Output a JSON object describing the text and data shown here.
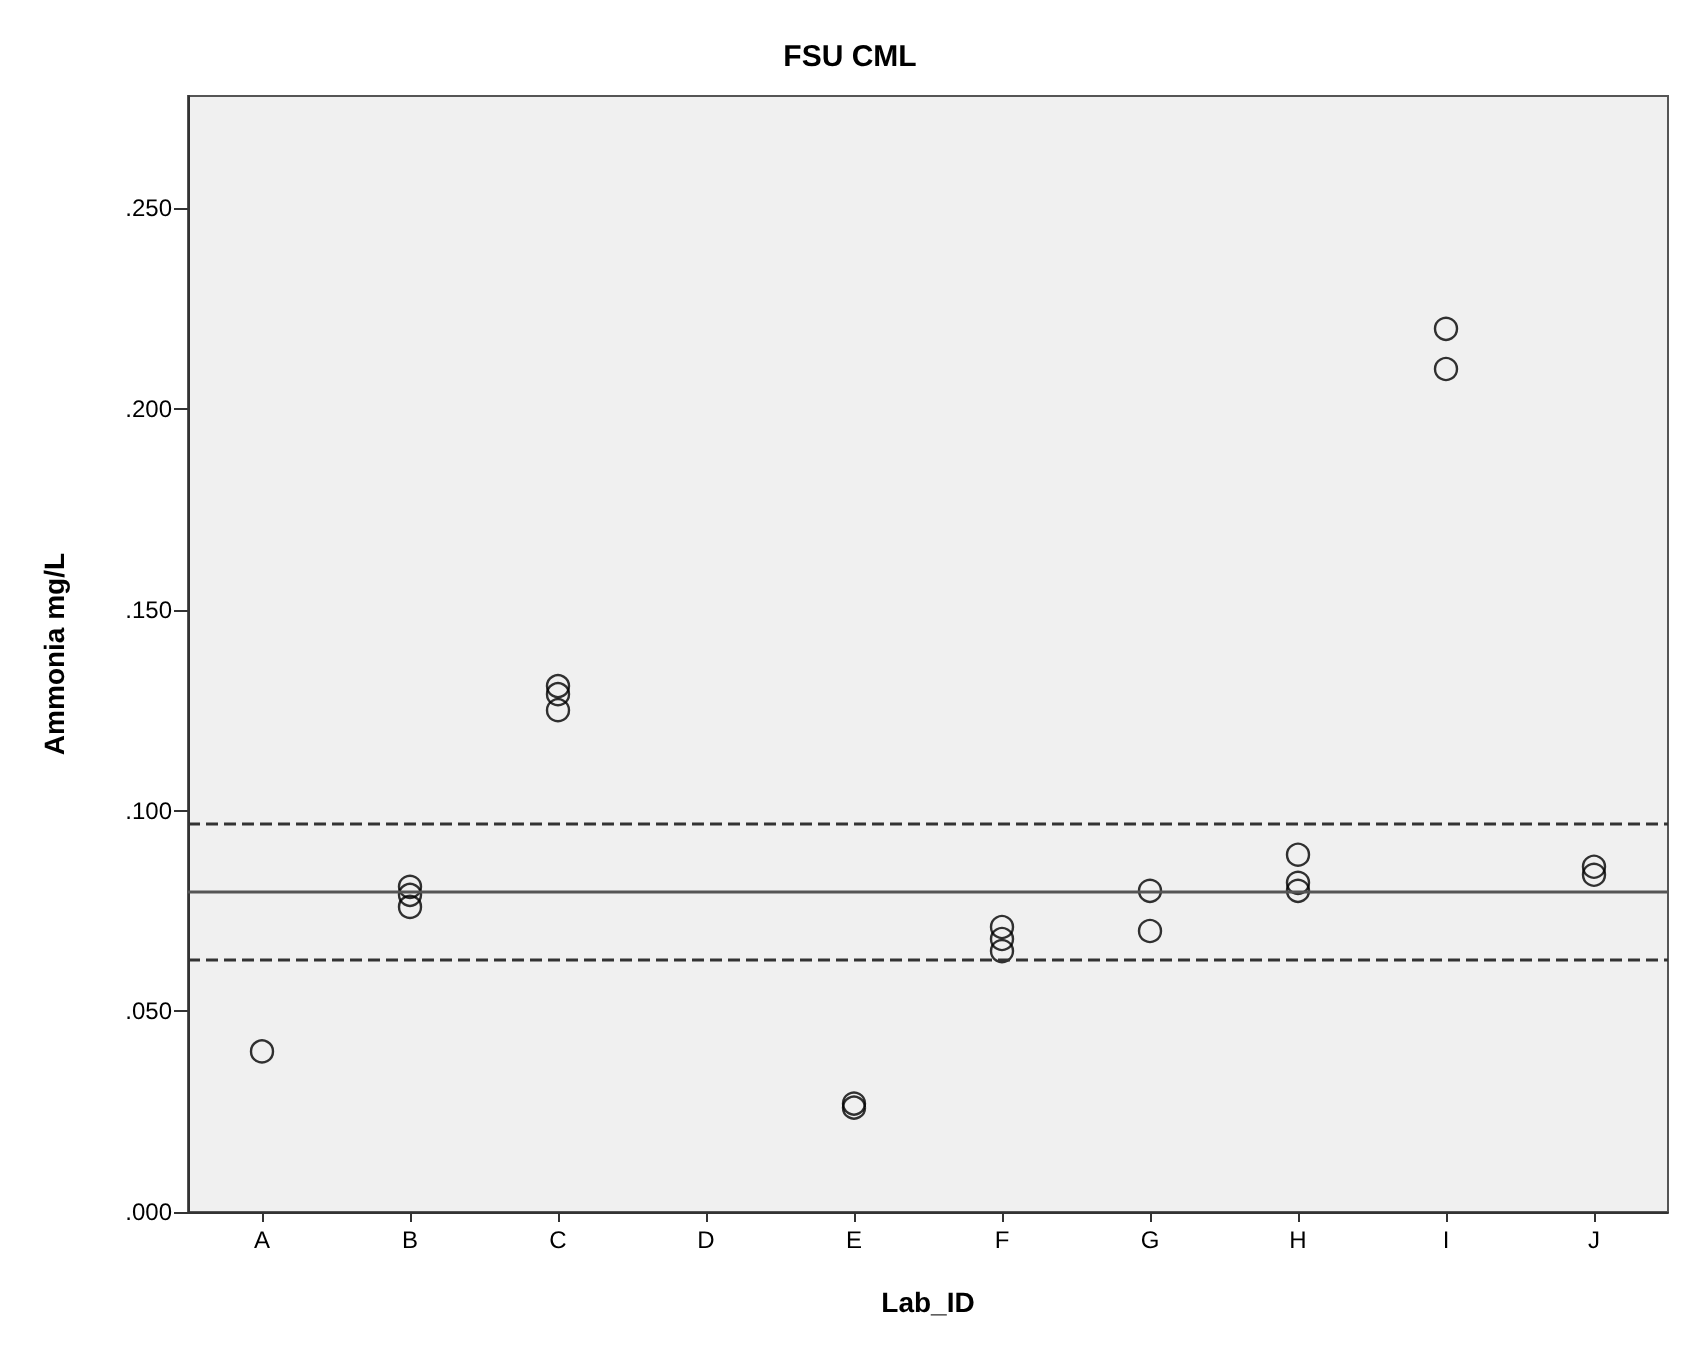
{
  "chart_data": {
    "type": "scatter",
    "title": "FSU CML",
    "xlabel": "Lab_ID",
    "ylabel": "Ammonia mg/L",
    "categories": [
      "A",
      "B",
      "C",
      "D",
      "E",
      "F",
      "G",
      "H",
      "I",
      "J"
    ],
    "series": [
      {
        "color": "#000000",
        "x": [
          "A",
          "B",
          "B",
          "B",
          "C",
          "C",
          "C",
          "E",
          "E",
          "F",
          "F",
          "F",
          "G",
          "G",
          "H",
          "H",
          "H",
          "I",
          "I",
          "J",
          "J"
        ],
        "values": [
          0.04,
          0.081,
          0.079,
          0.076,
          0.131,
          0.129,
          0.125,
          0.027,
          0.026,
          0.071,
          0.068,
          0.065,
          0.08,
          0.07,
          0.089,
          0.082,
          0.08,
          0.22,
          0.21,
          0.086,
          0.084
        ]
      }
    ],
    "ylim": [
      0,
      0.278
    ],
    "yticks": [
      {
        "value": 0,
        "label": ".000"
      },
      {
        "value": 0.05,
        "label": ".050"
      },
      {
        "value": 0.1,
        "label": ".100"
      },
      {
        "value": 0.15,
        "label": ".150"
      },
      {
        "value": 0.2,
        "label": ".200"
      },
      {
        "value": 0.25,
        "label": ".250"
      }
    ],
    "ref_lines": [
      {
        "axis": "y",
        "value": 0.08,
        "line_style": "solid",
        "color": "#555555"
      },
      {
        "axis": "y",
        "value": 0.097,
        "line_style": "dashed",
        "color": "#333333"
      },
      {
        "axis": "y",
        "value": 0.063,
        "line_style": "dashed",
        "color": "#333333"
      }
    ],
    "marker": "circle",
    "grid": false
  }
}
